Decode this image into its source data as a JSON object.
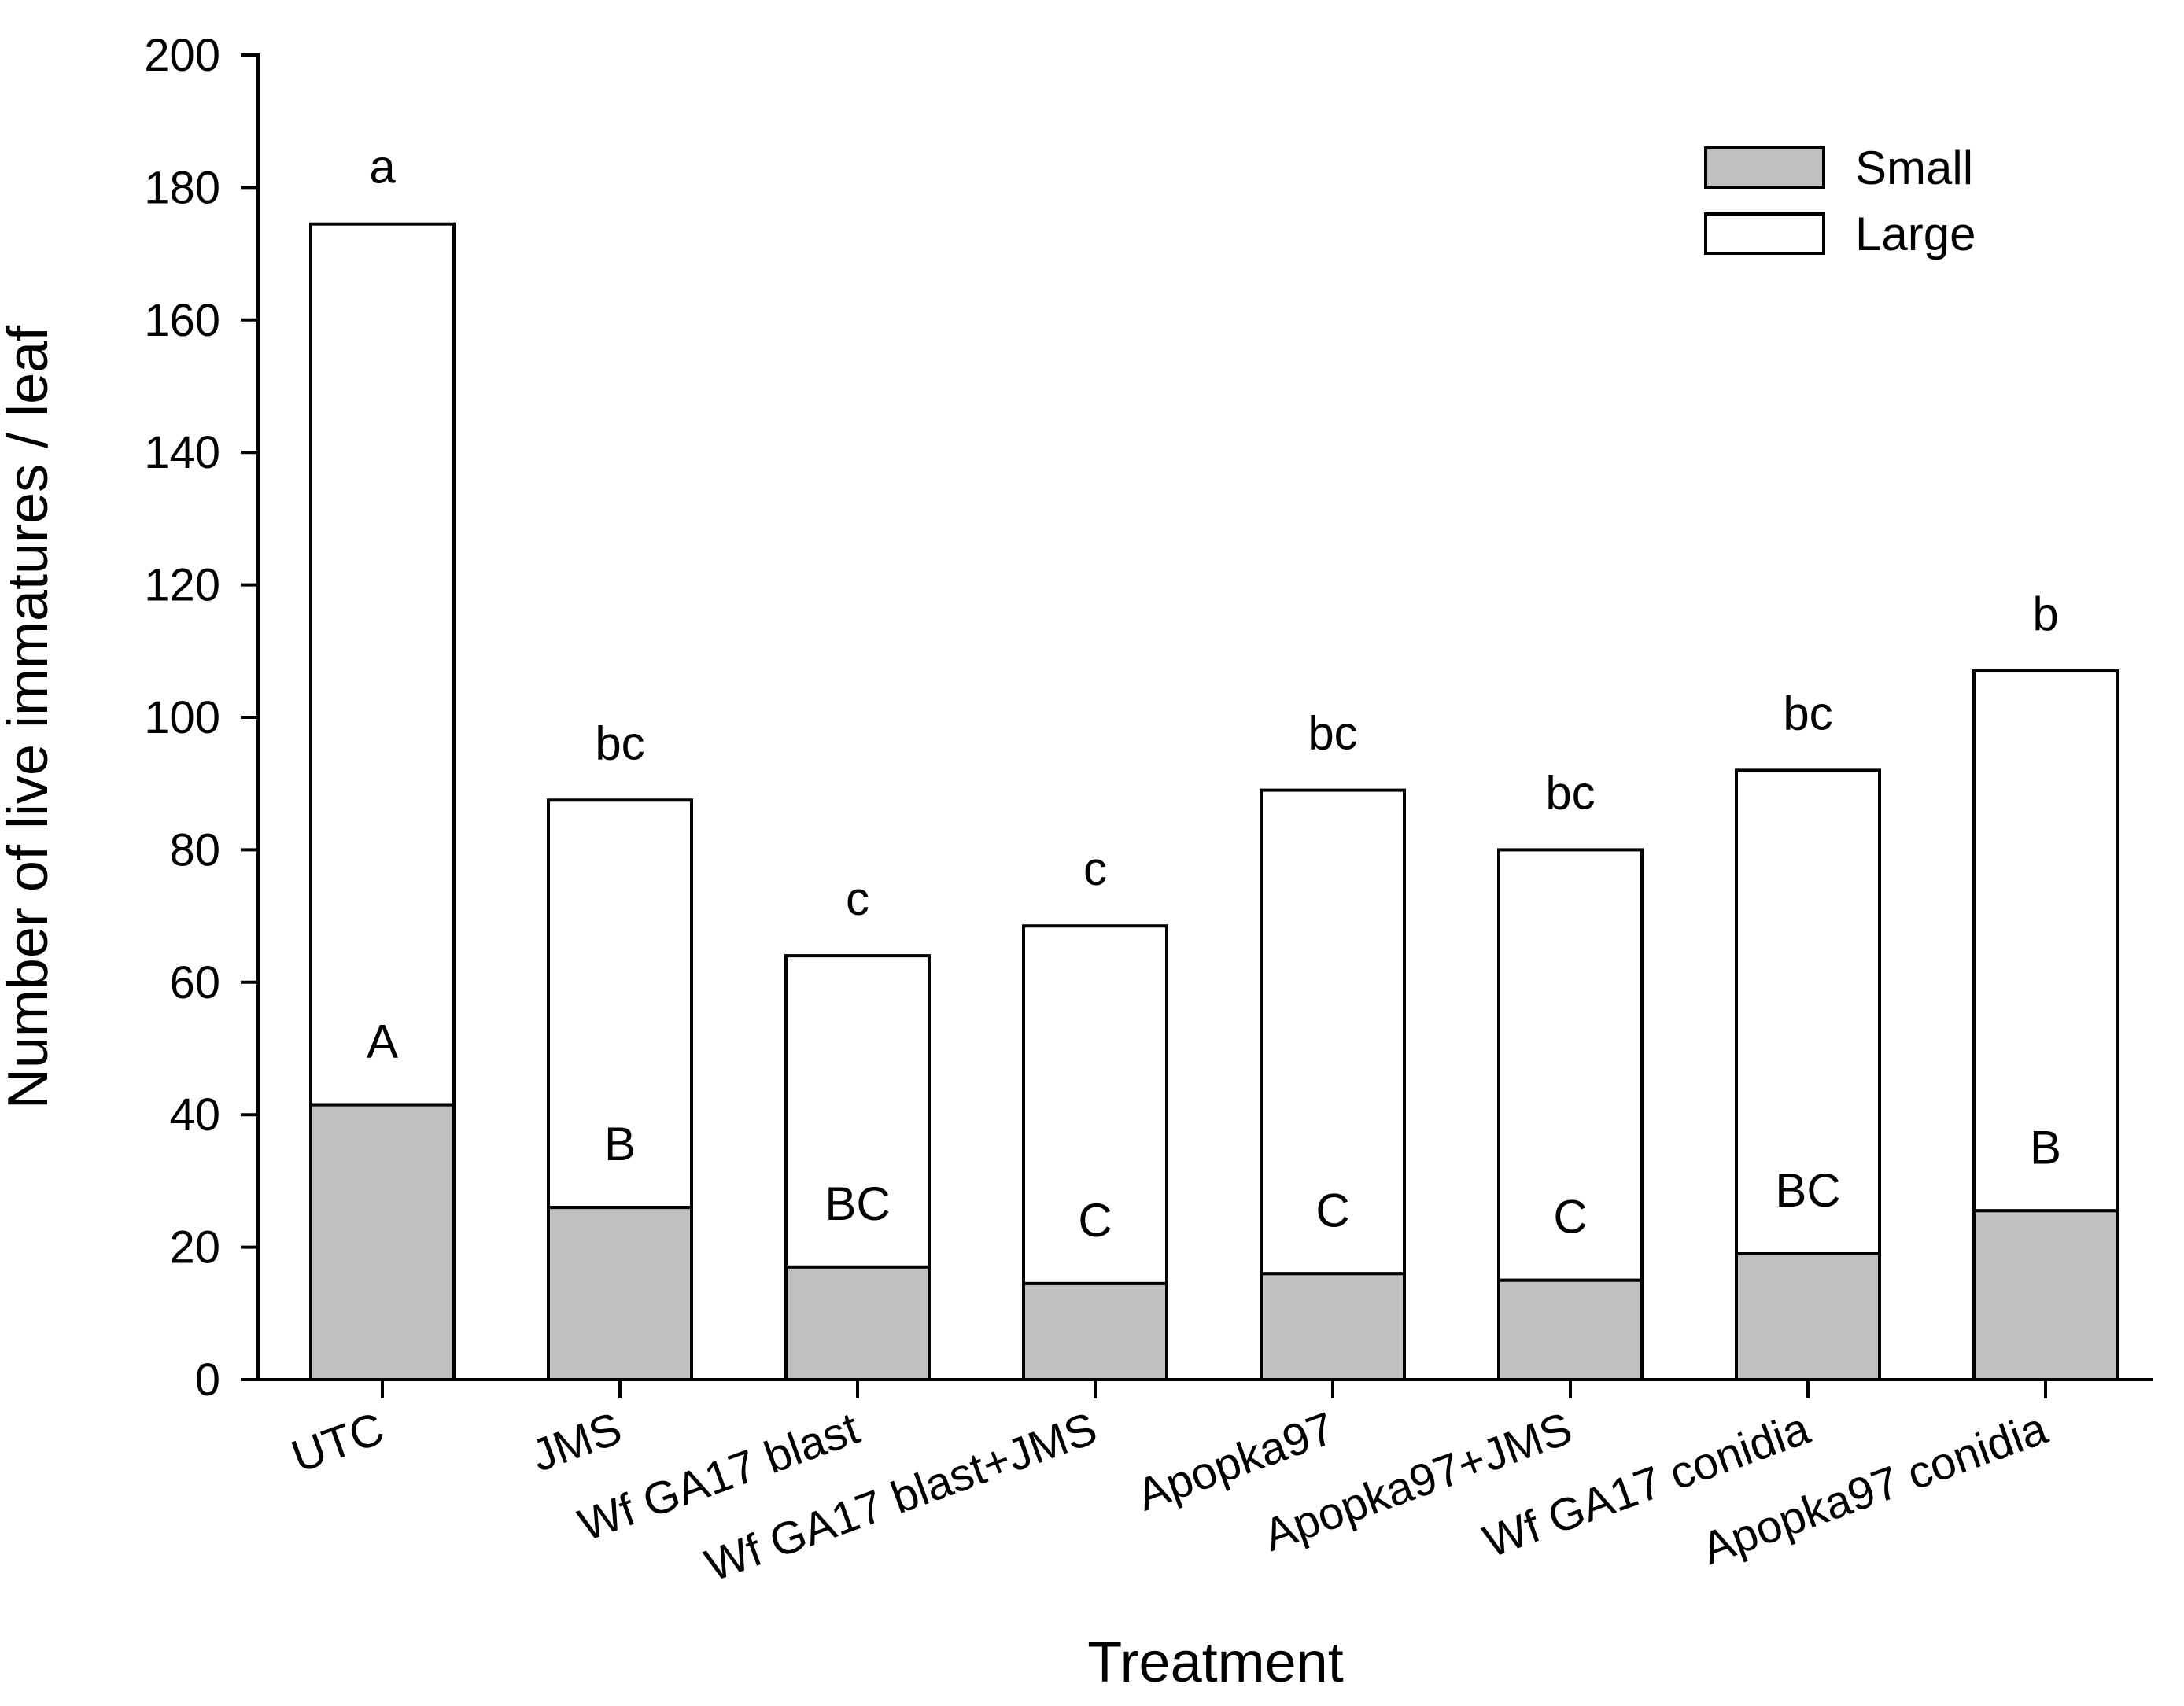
{
  "chart_data": {
    "type": "bar",
    "stacked": true,
    "title": "",
    "xlabel": "Treatment",
    "ylabel": "Number of live immatures / leaf",
    "ylim": [
      0,
      200
    ],
    "yticks": [
      0,
      20,
      40,
      60,
      80,
      100,
      120,
      140,
      160,
      180,
      200
    ],
    "categories": [
      "UTC",
      "JMS",
      "Wf GA17 blast",
      "Wf GA17 blast+JMS",
      "Apopka97",
      "Apopka97+JMS",
      "Wf GA17 conidia",
      "Apopka97 conidia"
    ],
    "series": [
      {
        "name": "Small",
        "color": "#c0c0c0",
        "values": [
          41.5,
          26,
          17,
          14.5,
          16,
          15,
          19,
          25.5
        ]
      },
      {
        "name": "Large",
        "color": "#ffffff",
        "values": [
          133,
          61.5,
          47,
          54,
          73,
          65,
          73,
          81.5
        ]
      }
    ],
    "totals": [
      174.5,
      87.5,
      64,
      68.5,
      89,
      80,
      92,
      107
    ],
    "letters_total": [
      "a",
      "bc",
      "c",
      "c",
      "bc",
      "bc",
      "bc",
      "b"
    ],
    "letters_small": [
      "A",
      "B",
      "BC",
      "C",
      "C",
      "C",
      "BC",
      "B"
    ],
    "legend": {
      "position": "top-right",
      "entries": [
        "Small",
        "Large"
      ]
    }
  }
}
